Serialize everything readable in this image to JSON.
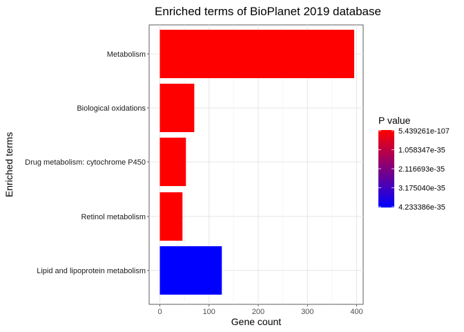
{
  "chart_data": {
    "type": "bar",
    "orientation": "horizontal",
    "title": "Enriched terms of BioPlanet 2019 database",
    "xlabel": "Gene count",
    "ylabel": "Enriched terms",
    "xlim": [
      0,
      400
    ],
    "x_ticks": [
      "0",
      "100",
      "200",
      "300",
      "400"
    ],
    "grid": true,
    "categories": [
      "Metabolism",
      "Biological oxidations",
      "Drug metabolism: cytochrome P450",
      "Retinol metabolism",
      "Lipid and lipoprotein metabolism"
    ],
    "values": [
      395,
      70,
      53,
      46,
      126
    ],
    "p_values": [
      5.439261e-107,
      5.439261e-107,
      5.439261e-107,
      5.439261e-107,
      4.233386e-35
    ],
    "legend": {
      "title": "P value",
      "placement": "right",
      "labels": [
        "5.439261e-107",
        "1.058347e-35",
        "2.116693e-35",
        "3.175040e-35",
        "4.233386e-35"
      ],
      "color_low_p": "#ff0000",
      "color_high_p": "#0000ff"
    }
  }
}
